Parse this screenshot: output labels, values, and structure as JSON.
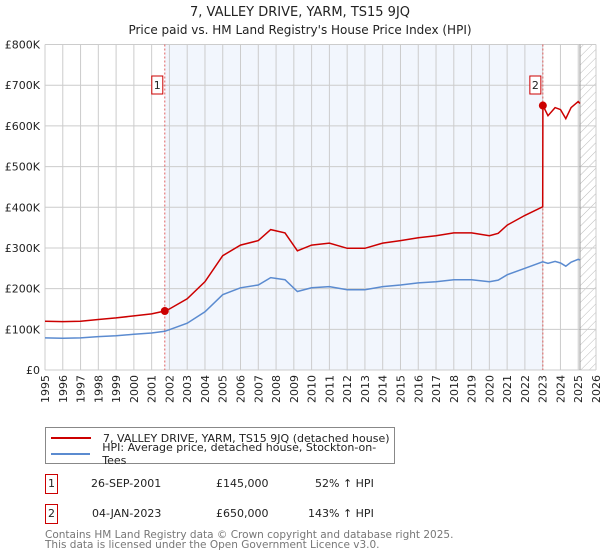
{
  "chart_data": {
    "type": "line",
    "title": "7, VALLEY DRIVE, YARM, TS15 9JQ",
    "subtitle": "Price paid vs. HM Land Registry's House Price Index (HPI)",
    "xlim": [
      1995,
      2026
    ],
    "ylim": [
      0,
      800000
    ],
    "x_ticks": [
      "1995",
      "1996",
      "1997",
      "1998",
      "1999",
      "2000",
      "2001",
      "2002",
      "2003",
      "2004",
      "2005",
      "2006",
      "2007",
      "2008",
      "2009",
      "2010",
      "2011",
      "2012",
      "2013",
      "2014",
      "2015",
      "2016",
      "2017",
      "2018",
      "2019",
      "2020",
      "2021",
      "2022",
      "2023",
      "2024",
      "2025",
      "2026"
    ],
    "y_ticks": [
      {
        "value": 0,
        "label": "£0"
      },
      {
        "value": 100000,
        "label": "£100K"
      },
      {
        "value": 200000,
        "label": "£200K"
      },
      {
        "value": 300000,
        "label": "£300K"
      },
      {
        "value": 400000,
        "label": "£400K"
      },
      {
        "value": 500000,
        "label": "£500K"
      },
      {
        "value": 600000,
        "label": "£600K"
      },
      {
        "value": 700000,
        "label": "£700K"
      },
      {
        "value": 800000,
        "label": "£800K"
      }
    ],
    "grid": true,
    "shaded_range": [
      2001.74,
      2023.01
    ],
    "forecast_hatch_from": 2025.1,
    "series": [
      {
        "name": "7, VALLEY DRIVE, YARM, TS15 9JQ (detached house)",
        "color": "#cc0000",
        "x": [
          1995,
          1996,
          1997,
          1998,
          1999,
          2000,
          2001,
          2001.74,
          2002,
          2003,
          2004,
          2005,
          2006,
          2007,
          2007.7,
          2008.5,
          2009.2,
          2010,
          2011,
          2012,
          2013,
          2014,
          2015,
          2016,
          2017,
          2018,
          2019,
          2020,
          2020.5,
          2021,
          2022,
          2023.0,
          2023.01,
          2023.3,
          2023.7,
          2024.0,
          2024.3,
          2024.6,
          2025,
          2025.1
        ],
        "y": [
          120000,
          119000,
          120000,
          124000,
          128000,
          133000,
          138000,
          145000,
          150000,
          175000,
          217000,
          281000,
          307000,
          318000,
          345000,
          337000,
          293000,
          307000,
          312000,
          299000,
          299000,
          312000,
          318000,
          325000,
          330000,
          337000,
          337000,
          330000,
          336000,
          356000,
          380000,
          401000,
          650000,
          625000,
          645000,
          640000,
          618000,
          645000,
          660000,
          655000
        ]
      },
      {
        "name": "HPI: Average price, detached house, Stockton-on-Tees",
        "color": "#5b8bd0",
        "x": [
          1995,
          1996,
          1997,
          1998,
          1999,
          2000,
          2001,
          2001.74,
          2002,
          2003,
          2004,
          2005,
          2006,
          2007,
          2007.7,
          2008.5,
          2009.2,
          2010,
          2011,
          2012,
          2013,
          2014,
          2015,
          2016,
          2017,
          2018,
          2019,
          2020,
          2020.5,
          2021,
          2022,
          2023.0,
          2023.3,
          2023.7,
          2024.0,
          2024.3,
          2024.6,
          2025,
          2025.1
        ],
        "y": [
          79000,
          78000,
          79000,
          82000,
          84000,
          88000,
          91000,
          95000,
          99000,
          115000,
          143000,
          185000,
          202000,
          209000,
          227000,
          222000,
          193000,
          202000,
          205000,
          197000,
          197000,
          205000,
          209000,
          214000,
          217000,
          222000,
          222000,
          217000,
          221000,
          234000,
          250000,
          266000,
          262000,
          267000,
          263000,
          255000,
          265000,
          272000,
          270000
        ]
      }
    ],
    "annotations": [
      {
        "label": "1",
        "x": 2001.74,
        "y": 145000
      },
      {
        "label": "2",
        "x": 2023.01,
        "y": 650000
      }
    ]
  },
  "legend": {
    "items": [
      "7, VALLEY DRIVE, YARM, TS15 9JQ (detached house)",
      "HPI: Average price, detached house, Stockton-on-Tees"
    ]
  },
  "transactions": [
    {
      "num": "1",
      "date": "26-SEP-2001",
      "price": "£145,000",
      "hpi": "52% ↑ HPI"
    },
    {
      "num": "2",
      "date": "04-JAN-2023",
      "price": "£650,000",
      "hpi": "143% ↑ HPI"
    }
  ],
  "footer": {
    "line1": "Contains HM Land Registry data © Crown copyright and database right 2025.",
    "line2": "This data is licensed under the Open Government Licence v3.0."
  }
}
